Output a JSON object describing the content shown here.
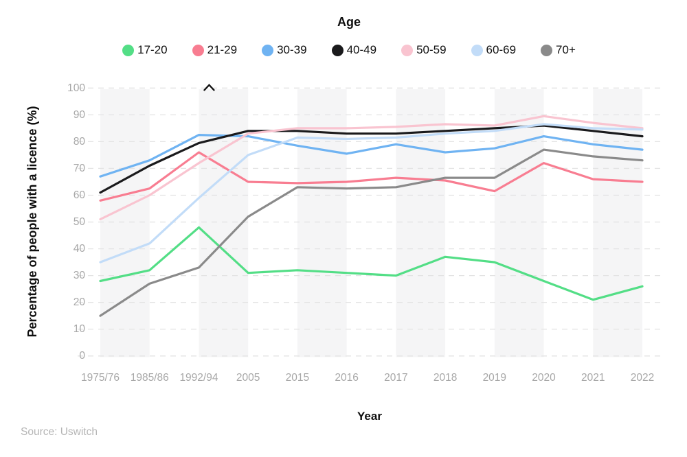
{
  "source": "Source: Uswitch",
  "chart_data": {
    "type": "line",
    "title": "Age",
    "xlabel": "Year",
    "ylabel": "Percentage of people with a licence (%)",
    "ylim": [
      0,
      100
    ],
    "y_tick_step": 10,
    "y_tick_labels": [
      "0",
      "10",
      "20",
      "30",
      "40",
      "50",
      "60",
      "70",
      "80",
      "90",
      "100"
    ],
    "grid": "horizontal-dashed",
    "legend_position": "top",
    "background_bands": "alternating pale stripes spanning category pairs",
    "categories": [
      "1975/76",
      "1985/86",
      "1992/94",
      "2005",
      "2015",
      "2016",
      "2017",
      "2018",
      "2019",
      "2020",
      "2021",
      "2022"
    ],
    "series": [
      {
        "name": "17-20",
        "color": "#53de86",
        "values": [
          28,
          32,
          48,
          31,
          32,
          31,
          30,
          37,
          35,
          28,
          21,
          26
        ]
      },
      {
        "name": "21-29",
        "color": "#f87d91",
        "values": [
          58,
          62.5,
          76,
          65,
          64.5,
          65,
          66.5,
          65.5,
          61.5,
          72,
          66,
          65
        ]
      },
      {
        "name": "30-39",
        "color": "#6fb3f2",
        "values": [
          67,
          73,
          82.5,
          82,
          78.5,
          75.5,
          79,
          76,
          77.5,
          82,
          79,
          77
        ]
      },
      {
        "name": "40-49",
        "color": "#1a1a1c",
        "values": [
          61,
          71,
          79.5,
          84,
          84,
          83,
          83,
          84,
          85,
          86,
          84,
          82
        ]
      },
      {
        "name": "50-59",
        "color": "#f9c4d0",
        "values": [
          51,
          60,
          72,
          83,
          85,
          85,
          85.5,
          86.5,
          86,
          89.5,
          87,
          85
        ]
      },
      {
        "name": "60-69",
        "color": "#c2dcf8",
        "values": [
          35,
          42,
          59,
          75,
          81.5,
          81,
          81.5,
          83,
          84,
          86.5,
          85,
          84.5
        ]
      },
      {
        "name": "70+",
        "color": "#8a8a8a",
        "values": [
          15,
          27,
          33,
          52,
          63,
          62.5,
          63,
          66.5,
          66.5,
          77,
          74.5,
          73
        ]
      }
    ],
    "annotations": [
      {
        "symbol": "^",
        "category_index": 2,
        "value": 100
      }
    ]
  }
}
